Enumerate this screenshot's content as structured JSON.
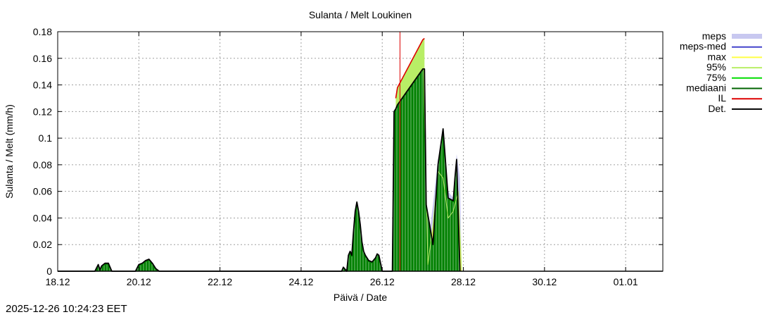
{
  "chart_data": {
    "type": "area",
    "title": "Sulanta / Melt  Loukinen",
    "xlabel": "Päivä / Date",
    "ylabel": "Sulanta / Melt (mm/h)",
    "xlim": [
      "2025-12-18",
      "2026-01-01T22:00"
    ],
    "ylim": [
      0,
      0.18
    ],
    "yticks": [
      "0",
      "0.02",
      "0.04",
      "0.06",
      "0.08",
      "0.1",
      "0.12",
      "0.14",
      "0.16",
      "0.18"
    ],
    "xticks": [
      "18.12",
      "20.12",
      "22.12",
      "24.12",
      "26.12",
      "28.12",
      "30.12",
      "01.01"
    ],
    "grid": true,
    "legend_position": "right",
    "legend": [
      {
        "label": "meps",
        "color": "#c8c8f0",
        "style": "band"
      },
      {
        "label": "meps-med",
        "color": "#4444cc",
        "style": "line"
      },
      {
        "label": "max",
        "color": "#ffff44",
        "style": "line"
      },
      {
        "label": "95%",
        "color": "#b8ee66",
        "style": "line"
      },
      {
        "label": "75%",
        "color": "#00dd00",
        "style": "line"
      },
      {
        "label": "mediaani",
        "color": "#006400",
        "style": "line"
      },
      {
        "label": "IL",
        "color": "#dd0000",
        "style": "line"
      },
      {
        "label": "Det.",
        "color": "#000000",
        "style": "line"
      }
    ],
    "series": [
      {
        "name": "Det.",
        "x": [
          "2025-12-18T00:00",
          "2025-12-18T22:00",
          "2025-12-19T00:00",
          "2025-12-19T01:00",
          "2025-12-19T02:00",
          "2025-12-19T04:00",
          "2025-12-19T06:00",
          "2025-12-19T08:00",
          "2025-12-19T09:00",
          "2025-12-19T10:00",
          "2025-12-19T22:00",
          "2025-12-20T00:00",
          "2025-12-20T02:00",
          "2025-12-20T04:00",
          "2025-12-20T06:00",
          "2025-12-20T08:00",
          "2025-12-20T10:00",
          "2025-12-20T12:00",
          "2025-12-25T00:00",
          "2025-12-25T01:00",
          "2025-12-25T03:00",
          "2025-12-25T04:00",
          "2025-12-25T05:00",
          "2025-12-25T06:00",
          "2025-12-25T07:00",
          "2025-12-25T08:00",
          "2025-12-25T09:00",
          "2025-12-25T10:00",
          "2025-12-25T11:00",
          "2025-12-25T12:00",
          "2025-12-25T13:00",
          "2025-12-25T14:00",
          "2025-12-25T16:00",
          "2025-12-25T18:00",
          "2025-12-25T20:00",
          "2025-12-25T21:00",
          "2025-12-25T22:00",
          "2025-12-26T00:00",
          "2025-12-26T06:00",
          "2025-12-26T07:00",
          "2025-12-26T08:00",
          "2025-12-26T09:00",
          "2025-12-27T00:00",
          "2025-12-27T01:00",
          "2025-12-27T02:00",
          "2025-12-27T06:00",
          "2025-12-27T09:00",
          "2025-12-27T12:00",
          "2025-12-27T13:00",
          "2025-12-27T15:00",
          "2025-12-27T18:00",
          "2025-12-27T19:00",
          "2025-12-27T20:00",
          "2025-12-27T22:00"
        ],
        "values": [
          0,
          0,
          0.005,
          0.001,
          0.004,
          0.006,
          0.006,
          0,
          0,
          0,
          0,
          0.005,
          0.006,
          0.008,
          0.009,
          0.006,
          0.002,
          0,
          0,
          0.003,
          0,
          0.012,
          0.015,
          0.012,
          0.03,
          0.045,
          0.052,
          0.045,
          0.035,
          0.022,
          0.015,
          0.012,
          0.008,
          0.007,
          0.01,
          0.013,
          0.012,
          0,
          0,
          0.12,
          0.122,
          0.125,
          0.152,
          0.152,
          0.05,
          0.02,
          0.08,
          0.107,
          0.09,
          0.055,
          0.053,
          0.07,
          0.084,
          0
        ]
      },
      {
        "name": "IL",
        "x": [
          "2025-12-26T08:00",
          "2025-12-26T09:00",
          "2025-12-27T00:00",
          "2025-12-27T01:00"
        ],
        "values": [
          0.13,
          0.138,
          0.174,
          0.175
        ]
      },
      {
        "name": "95%",
        "x": [
          "2025-12-26T09:00",
          "2025-12-27T00:00",
          "2025-12-27T03:00",
          "2025-12-27T06:00",
          "2025-12-27T09:00",
          "2025-12-27T12:00",
          "2025-12-27T15:00",
          "2025-12-27T18:00",
          "2025-12-27T21:00",
          "2025-12-27T23:00"
        ],
        "values": [
          0.138,
          0.174,
          0.005,
          0.035,
          0.075,
          0.07,
          0.04,
          0.045,
          0.06,
          0
        ]
      },
      {
        "name": "meps",
        "x": [
          "2025-12-27T04:00",
          "2025-12-27T06:00",
          "2025-12-27T09:00",
          "2025-12-27T12:00",
          "2025-12-27T15:00",
          "2025-12-27T18:00",
          "2025-12-27T20:00",
          "2025-12-27T22:00",
          "2025-12-27T23:00"
        ],
        "values": [
          0.03,
          0.05,
          0.085,
          0.08,
          0.06,
          0.055,
          0.088,
          0.07,
          0
        ]
      },
      {
        "name": "75%",
        "x": [
          "2025-12-27T09:00",
          "2025-12-27T12:00",
          "2025-12-27T15:00",
          "2025-12-27T20:00",
          "2025-12-27T22:00"
        ],
        "values": [
          0.005,
          0.02,
          0.005,
          0.02,
          0.005
        ]
      },
      {
        "name": "mediaani",
        "x": [
          "2025-12-27T10:00",
          "2025-12-27T12:00",
          "2025-12-27T14:00",
          "2025-12-27T20:00",
          "2025-12-27T21:00",
          "2025-12-27T22:00"
        ],
        "values": [
          0,
          0.008,
          0,
          0,
          0.008,
          0
        ]
      }
    ]
  },
  "footer": {
    "timestamp": "2025-12-26 10:24:23 EET"
  }
}
